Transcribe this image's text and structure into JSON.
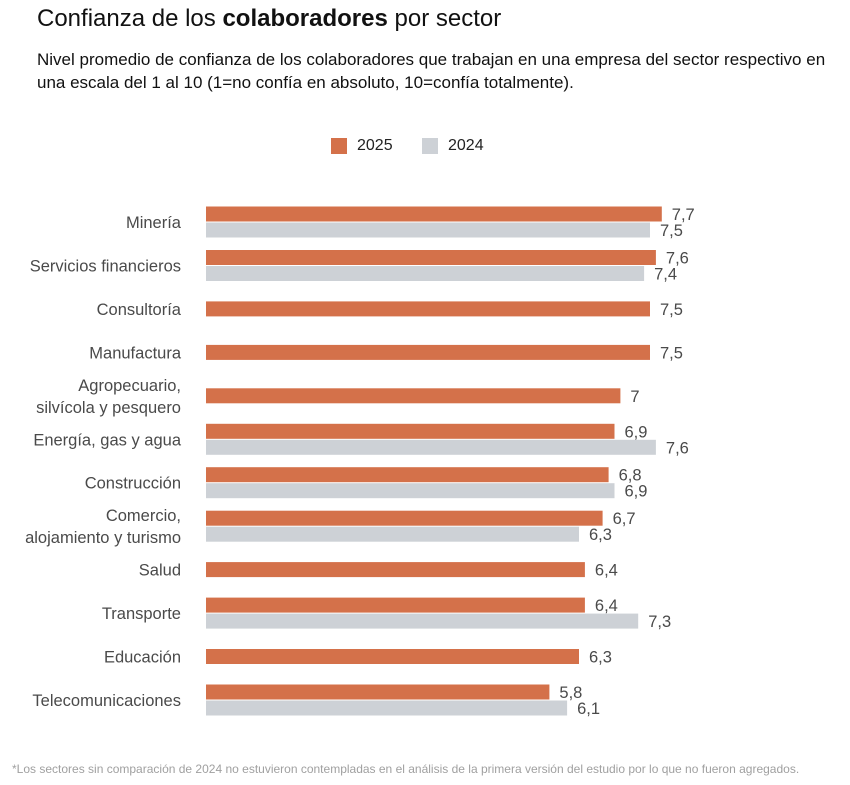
{
  "title": {
    "prefix": "Confianza de los ",
    "bold": "colaboradores",
    "suffix": " por sector"
  },
  "subtitle": "Nivel promedio de confianza de los colaboradores que trabajan en una empresa del sector respectivo en una escala del 1 al 10 (1=no confía en absoluto, 10=confía totalmente).",
  "legend": [
    {
      "label": "2025",
      "color": "#d4714a"
    },
    {
      "label": "2024",
      "color": "#cdd1d6"
    }
  ],
  "footnote": "*Los sectores sin comparación de 2024 no estuvieron contempladas en el análisis de la primera versión del estudio por lo que no fueron agregados.",
  "chart_data": {
    "type": "bar",
    "orientation": "horizontal",
    "title": "Confianza de los colaboradores por sector",
    "xlabel": "",
    "ylabel": "",
    "xlim": [
      0,
      10
    ],
    "decimal_separator": ",",
    "categories": [
      [
        "Minería"
      ],
      [
        "Servicios financieros"
      ],
      [
        "Consultoría"
      ],
      [
        "Manufactura"
      ],
      [
        "Agropecuario,",
        "silvícola y pesquero"
      ],
      [
        "Energía, gas y agua"
      ],
      [
        "Construcción"
      ],
      [
        "Comercio,",
        "alojamiento y turismo"
      ],
      [
        "Salud"
      ],
      [
        "Transporte"
      ],
      [
        "Educación"
      ],
      [
        "Telecomunicaciones"
      ]
    ],
    "series": [
      {
        "name": "2025",
        "color": "#d4714a",
        "values": [
          7.7,
          7.6,
          7.5,
          7.5,
          7.0,
          6.9,
          6.8,
          6.7,
          6.4,
          6.4,
          6.3,
          5.8
        ]
      },
      {
        "name": "2024",
        "color": "#cdd1d6",
        "values": [
          7.5,
          7.4,
          null,
          null,
          null,
          7.6,
          6.9,
          6.3,
          null,
          7.3,
          null,
          6.1
        ]
      }
    ]
  }
}
